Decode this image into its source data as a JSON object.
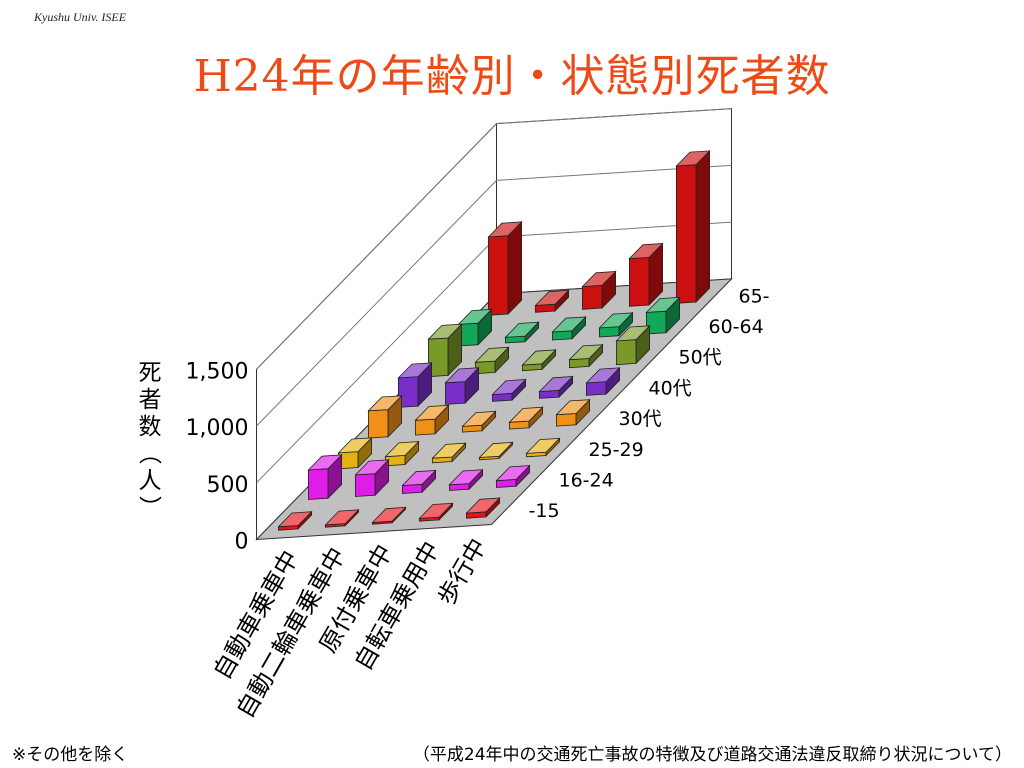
{
  "header": {
    "label": "Kyushu Univ. ISEE"
  },
  "title": "H24年の年齢別・状態別死者数",
  "footnotes": {
    "left": "※その他を除く",
    "right": "（平成24年中の交通死亡事故の特徴及び道路交通法違反取締り状況について）"
  },
  "chart_data": {
    "type": "bar",
    "subtype": "3d-column",
    "ylabel": "死者数（人）",
    "ylim": [
      0,
      1500
    ],
    "yticks": [
      "0",
      "500",
      "1,000",
      "1,500"
    ],
    "grid": true,
    "categories": [
      "自動車乗車中",
      "自動二輪車乗車中",
      "原付乗車中",
      "自転車乗用中",
      "歩行中"
    ],
    "series": [
      {
        "name": "-15",
        "color": "#e8141b",
        "values": [
          30,
          20,
          15,
          25,
          45
        ]
      },
      {
        "name": "16-24",
        "color": "#e01ce8",
        "values": [
          260,
          190,
          70,
          50,
          60
        ]
      },
      {
        "name": "25-29",
        "color": "#e6b010",
        "values": [
          140,
          80,
          40,
          20,
          30
        ]
      },
      {
        "name": "30代",
        "color": "#f09018",
        "values": [
          240,
          130,
          50,
          60,
          100
        ]
      },
      {
        "name": "40代",
        "color": "#7a2ec8",
        "values": [
          260,
          190,
          60,
          60,
          110
        ]
      },
      {
        "name": "50代",
        "color": "#7a9a28",
        "values": [
          330,
          100,
          50,
          70,
          210
        ]
      },
      {
        "name": "60-64",
        "color": "#12a858",
        "values": [
          190,
          50,
          70,
          80,
          190
        ]
      },
      {
        "name": "65-",
        "color": "#cc1010",
        "values": [
          690,
          60,
          200,
          420,
          1210
        ]
      }
    ]
  }
}
